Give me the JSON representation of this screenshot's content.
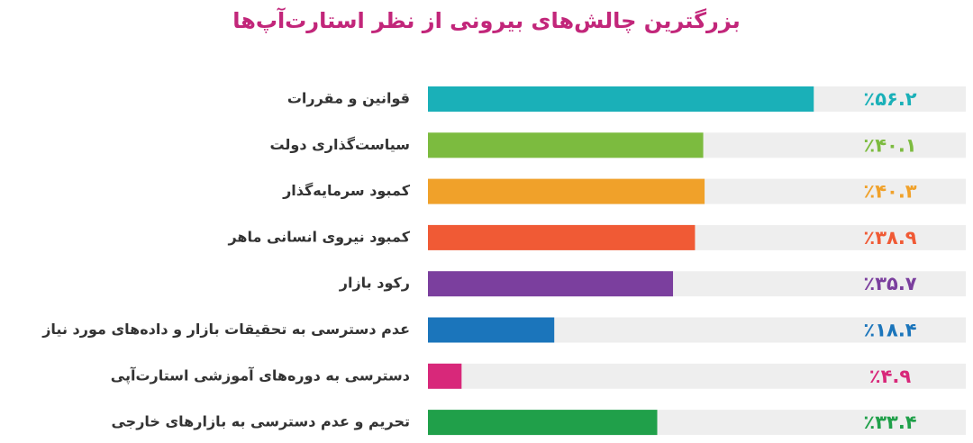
{
  "chart_data": {
    "type": "bar",
    "orientation": "horizontal",
    "title": "بزرگترین چالش‌های بیرونی از نظر استارت‌آپ‌ها",
    "categories": [
      "قوانین و مقررات",
      "سیاست‌گذاری دولت",
      "کمبود سرمایه‌گذار",
      "کمبود نیروی انسانی ماهر",
      "رکود بازار",
      "عدم دسترسی به تحقیقات بازار و داده‌های مورد نیاز",
      "دسترسی به دوره‌های آموزشی استارت‌آپی",
      "تحریم و عدم دسترسی به بازارهای خارجی"
    ],
    "values": [
      56.2,
      40.1,
      40.3,
      38.9,
      35.7,
      18.4,
      4.9,
      33.4
    ],
    "value_labels": [
      "٪۵۶.۲",
      "٪۴۰.۱",
      "٪۴۰.۳",
      "٪۳۸.۹",
      "٪۳۵.۷",
      "٪۱۸.۴",
      "٪۴.۹",
      "٪۳۳.۴"
    ],
    "colors": [
      "#1ab0b8",
      "#7cbb3f",
      "#f0a12a",
      "#f05a35",
      "#7b3f9e",
      "#1b75bb",
      "#d8287a",
      "#20a04a"
    ]
  }
}
